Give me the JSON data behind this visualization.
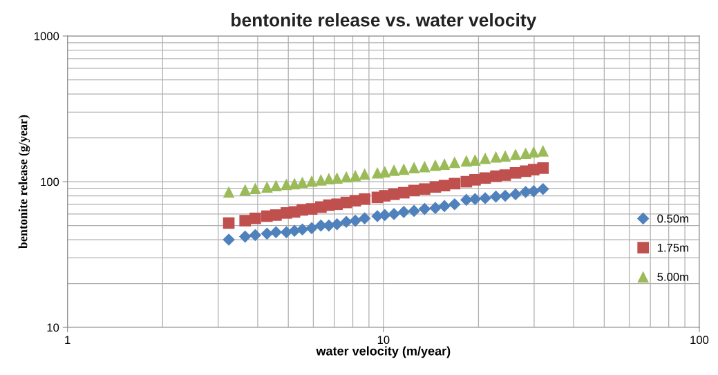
{
  "chart_data": {
    "type": "scatter",
    "title": "bentonite release vs. water velocity",
    "xlabel": "water velocity (m/year)",
    "ylabel": "bentonite release (g/year)",
    "log": "xy",
    "grid": true,
    "legend": "right",
    "x": [
      3.24,
      3.65,
      3.93,
      4.28,
      4.57,
      4.93,
      5.23,
      5.54,
      5.93,
      6.34,
      6.72,
      7.13,
      7.63,
      8.15,
      8.72,
      9.57,
      10.1,
      10.8,
      11.6,
      12.5,
      13.5,
      14.6,
      15.6,
      16.8,
      18.3,
      19.5,
      21.0,
      22.7,
      24.3,
      26.2,
      28.2,
      29.9,
      32.0
    ],
    "xlim": [
      1,
      100
    ],
    "xticks": [
      1,
      10,
      100
    ],
    "ylim": [
      10,
      1000
    ],
    "yticks": [
      10,
      100,
      1000
    ],
    "series": [
      {
        "name": "0.50m",
        "color": "#4f81bd",
        "marker": "diamond",
        "values": [
          40,
          42,
          43,
          44,
          45,
          45,
          46,
          47,
          48,
          50,
          50,
          51,
          53,
          54,
          56,
          58,
          59,
          60,
          62,
          63,
          65,
          66,
          68,
          70,
          75,
          76,
          77,
          79,
          80,
          82,
          85,
          86,
          89
        ]
      },
      {
        "name": "1.75m",
        "color": "#c0504d",
        "marker": "square",
        "values": [
          52,
          54,
          56,
          58,
          59,
          61,
          62,
          64,
          65,
          67,
          69,
          70,
          72,
          74,
          76,
          78,
          80,
          82,
          84,
          87,
          89,
          92,
          94,
          97,
          100,
          103,
          106,
          109,
          111,
          115,
          118,
          121,
          124
        ]
      },
      {
        "name": "5.00m",
        "color": "#9bbb59",
        "marker": "triangle",
        "values": [
          85,
          88,
          90,
          92,
          94,
          96,
          97,
          99,
          101,
          103,
          105,
          106,
          108,
          110,
          113,
          115,
          117,
          120,
          122,
          125,
          127,
          130,
          132,
          136,
          139,
          141,
          145,
          148,
          150,
          154,
          157,
          160,
          163
        ]
      }
    ]
  }
}
